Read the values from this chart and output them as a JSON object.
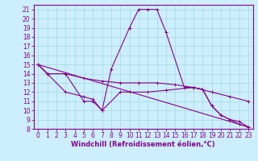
{
  "xlabel": "Windchill (Refroidissement éolien,°C)",
  "background_color": "#cceeff",
  "line_color": "#880088",
  "grid_color": "#aadddd",
  "xlim": [
    -0.5,
    23.5
  ],
  "ylim": [
    8,
    21.5
  ],
  "xticks": [
    0,
    1,
    2,
    3,
    4,
    5,
    6,
    7,
    8,
    9,
    10,
    11,
    12,
    13,
    14,
    15,
    16,
    17,
    18,
    19,
    20,
    21,
    22,
    23
  ],
  "yticks": [
    8,
    9,
    10,
    11,
    12,
    13,
    14,
    15,
    16,
    17,
    18,
    19,
    20,
    21
  ],
  "lines": [
    {
      "x": [
        0,
        1,
        3,
        5,
        6,
        7,
        8,
        10,
        11,
        12,
        13,
        14,
        16,
        17,
        18,
        19,
        20,
        21,
        22,
        23
      ],
      "y": [
        15,
        14,
        14,
        11,
        11,
        10,
        14.5,
        19,
        21,
        21,
        21,
        18.5,
        12.5,
        12.5,
        12.3,
        10.5,
        9.5,
        9,
        8.5,
        8.2
      ]
    },
    {
      "x": [
        0,
        1,
        3,
        5,
        7,
        9,
        11,
        13,
        15,
        17,
        19,
        21,
        23
      ],
      "y": [
        15,
        14,
        14,
        13.5,
        13.2,
        13,
        13,
        13,
        12.8,
        12.5,
        12,
        11.5,
        11
      ]
    },
    {
      "x": [
        0,
        3,
        5,
        6,
        7,
        9,
        10,
        12,
        14,
        17,
        18,
        19,
        20,
        21,
        22,
        23
      ],
      "y": [
        15,
        12,
        11.5,
        11.2,
        10,
        12,
        12,
        12,
        12.2,
        12.5,
        12.3,
        10.5,
        9.5,
        9,
        8.8,
        8.2
      ]
    },
    {
      "x": [
        0,
        23
      ],
      "y": [
        15,
        8.2
      ]
    }
  ],
  "fontsize_xlabel": 6,
  "fontsize_ticks": 5.5,
  "marker": "+"
}
